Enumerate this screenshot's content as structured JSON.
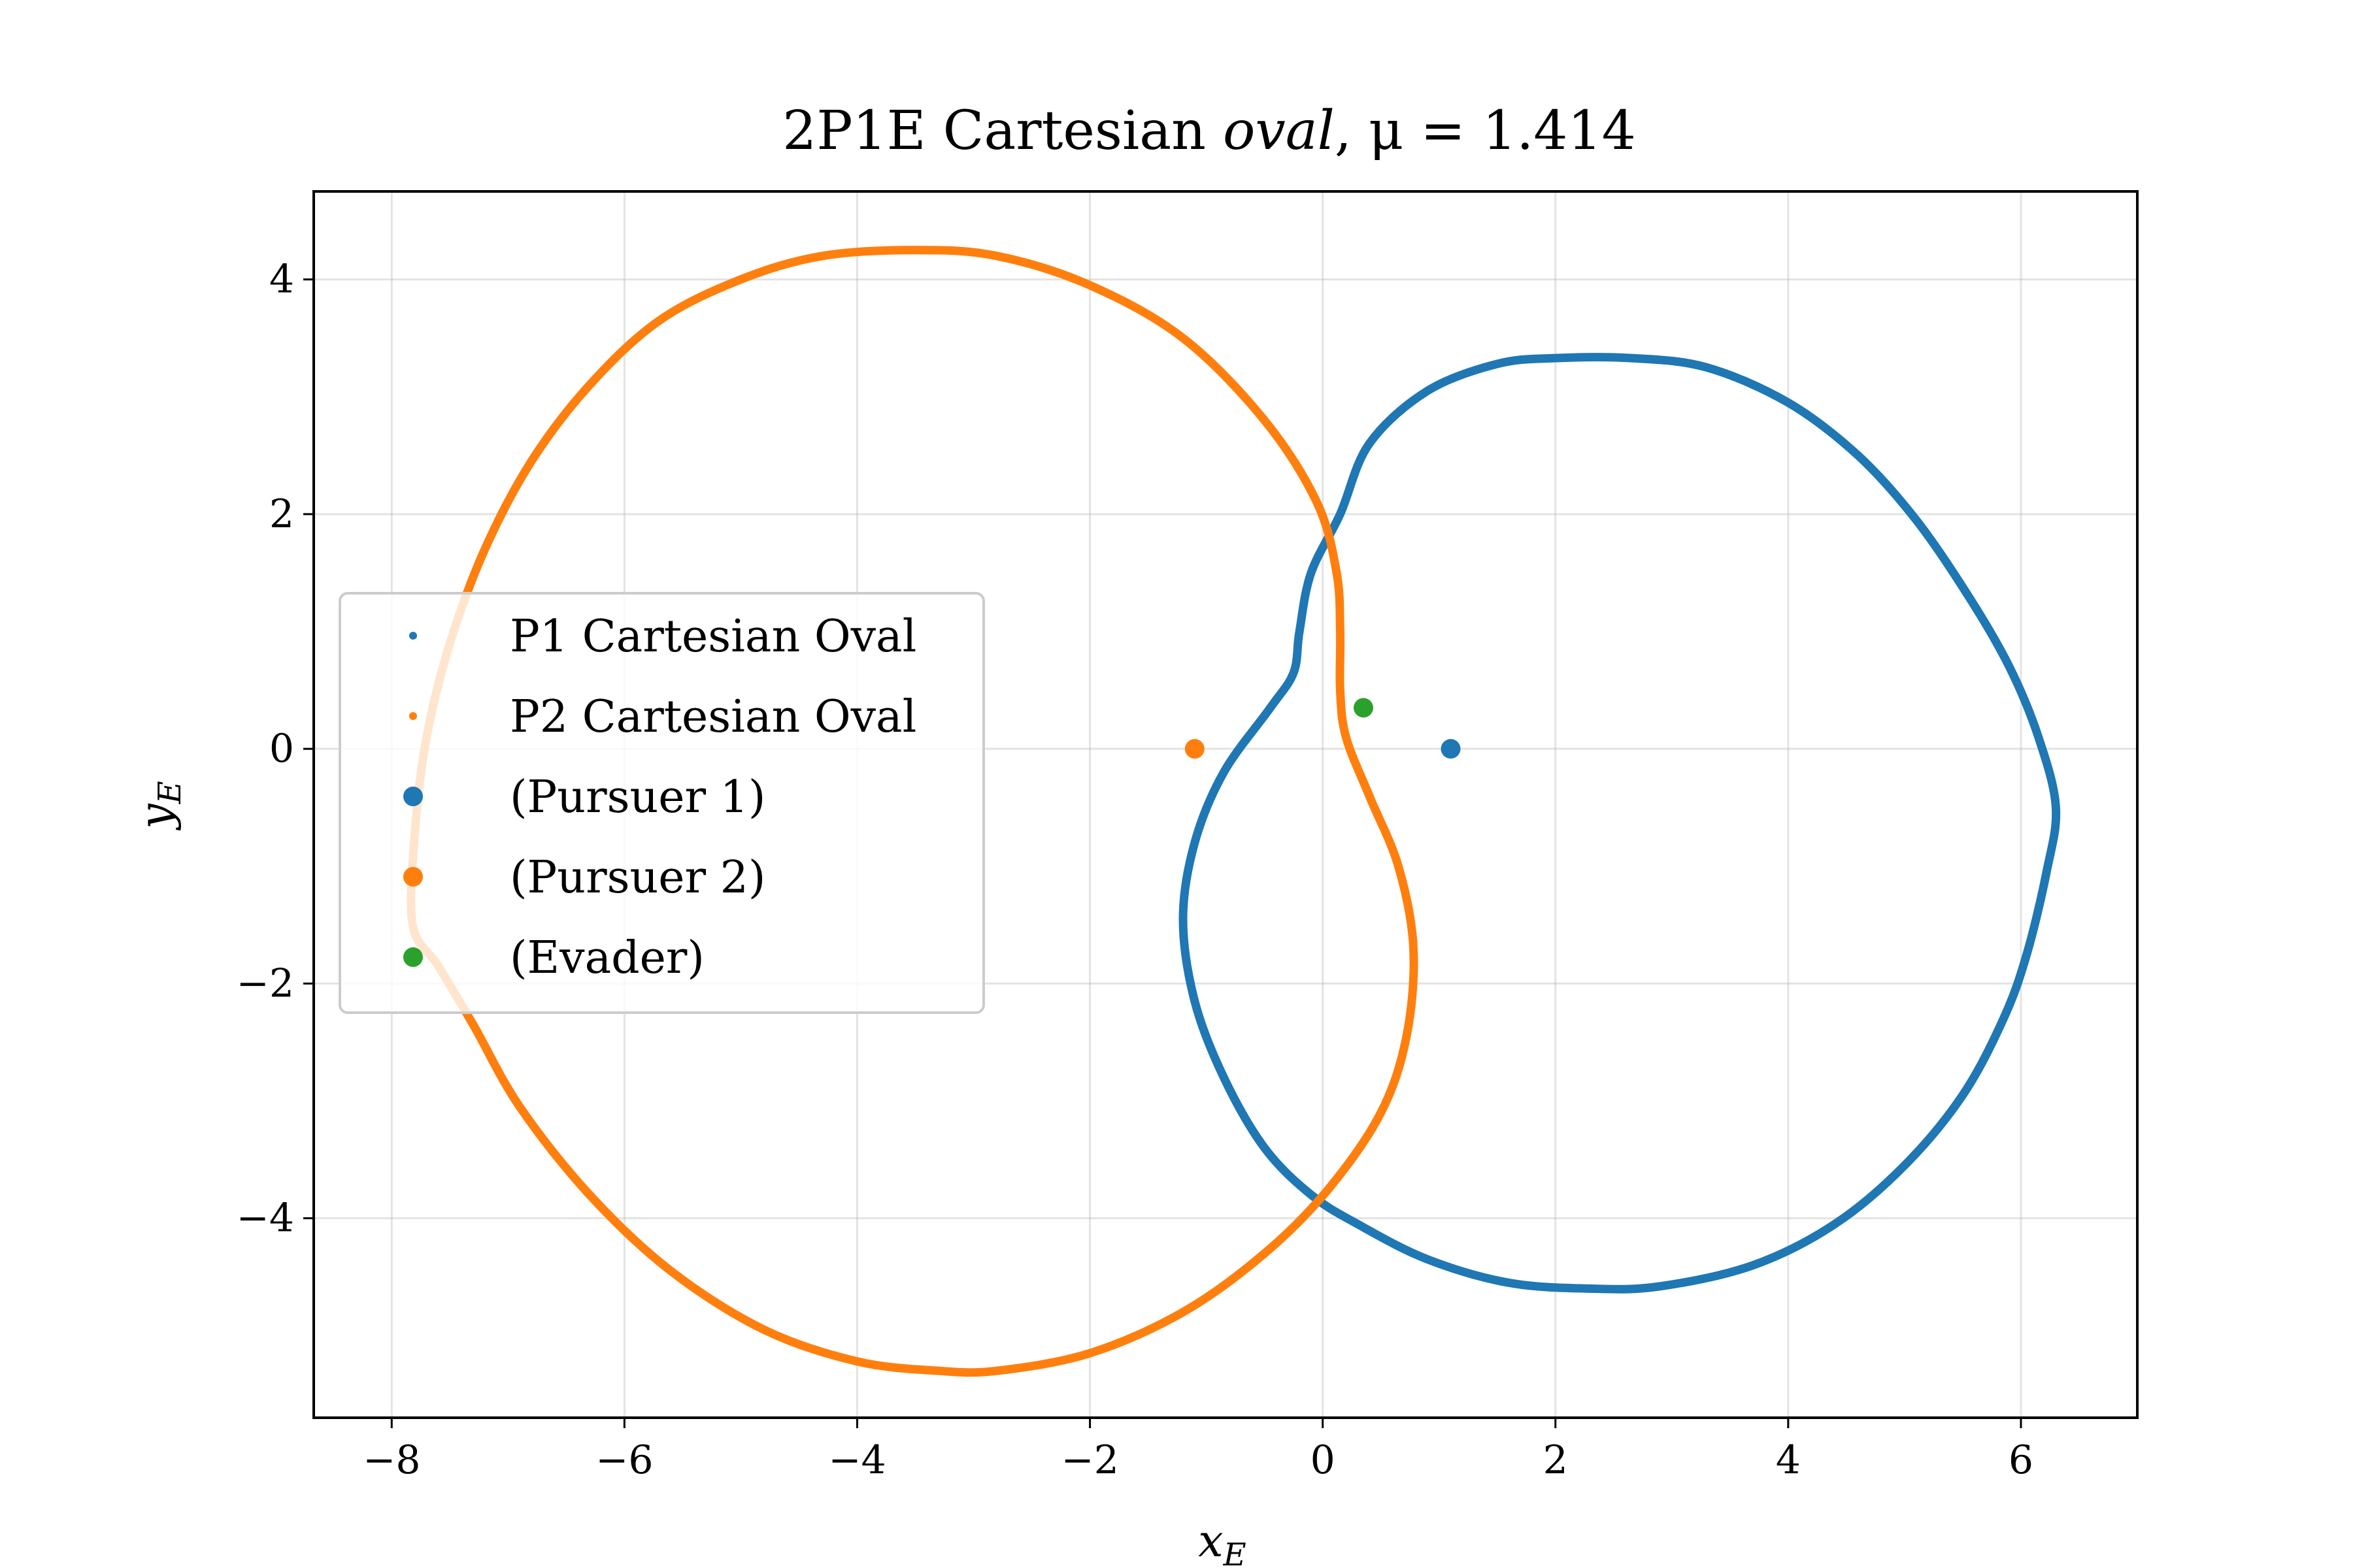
{
  "chart_data": {
    "type": "scatter",
    "title": {
      "prefix": "2P1E Cartesian ",
      "italic": "oval",
      "suffix": ", μ = 1.414"
    },
    "xlabel": {
      "main": "x",
      "sub": "E"
    },
    "ylabel": {
      "main": "y",
      "sub": "E"
    },
    "xlim": [
      -8.67,
      7.0
    ],
    "ylim": [
      -5.7,
      4.75
    ],
    "xticks": [
      -8,
      -6,
      -4,
      -2,
      0,
      2,
      4,
      6
    ],
    "yticks": [
      -4,
      -2,
      0,
      2,
      4
    ],
    "xtick_labels": [
      "−8",
      "−6",
      "−4",
      "−2",
      "0",
      "2",
      "4",
      "6"
    ],
    "ytick_labels": [
      "−4",
      "−2",
      "0",
      "2",
      "4"
    ],
    "grid": true,
    "legend_position": "center-left",
    "colors": {
      "p1": "#1f77b4",
      "p2": "#ff7f0e",
      "evader": "#2ca02c"
    },
    "series": [
      {
        "name": "P1 Cartesian Oval",
        "kind": "curve",
        "color": "#1f77b4",
        "points": [
          [
            0.15,
            2.0
          ],
          [
            0.4,
            2.6
          ],
          [
            0.9,
            3.05
          ],
          [
            1.5,
            3.28
          ],
          [
            2.0,
            3.33
          ],
          [
            2.65,
            3.33
          ],
          [
            3.3,
            3.25
          ],
          [
            4.0,
            2.95
          ],
          [
            4.6,
            2.5
          ],
          [
            5.1,
            1.95
          ],
          [
            5.55,
            1.3
          ],
          [
            5.9,
            0.7
          ],
          [
            6.15,
            0.1
          ],
          [
            6.3,
            -0.5
          ],
          [
            6.22,
            -1.05
          ],
          [
            6.05,
            -1.75
          ],
          [
            5.85,
            -2.3
          ],
          [
            5.5,
            -2.95
          ],
          [
            5.0,
            -3.55
          ],
          [
            4.4,
            -4.05
          ],
          [
            3.7,
            -4.4
          ],
          [
            2.9,
            -4.58
          ],
          [
            2.3,
            -4.6
          ],
          [
            1.6,
            -4.55
          ],
          [
            0.9,
            -4.35
          ],
          [
            0.3,
            -4.05
          ],
          [
            -0.1,
            -3.8
          ],
          [
            -0.5,
            -3.4
          ],
          [
            -0.85,
            -2.8
          ],
          [
            -1.1,
            -2.15
          ],
          [
            -1.2,
            -1.45
          ],
          [
            -1.1,
            -0.8
          ],
          [
            -0.85,
            -0.2
          ],
          [
            -0.45,
            0.35
          ],
          [
            -0.25,
            0.65
          ],
          [
            -0.2,
            1.0
          ],
          [
            -0.1,
            1.5
          ],
          [
            0.15,
            2.0
          ]
        ]
      },
      {
        "name": "P2 Cartesian Oval",
        "kind": "curve",
        "color": "#ff7f0e",
        "points": [
          [
            -7.82,
            -1.5
          ],
          [
            -7.8,
            -0.7
          ],
          [
            -7.7,
            0.1
          ],
          [
            -7.5,
            0.9
          ],
          [
            -7.2,
            1.7
          ],
          [
            -6.8,
            2.45
          ],
          [
            -6.3,
            3.1
          ],
          [
            -5.7,
            3.65
          ],
          [
            -5.0,
            4.0
          ],
          [
            -4.3,
            4.2
          ],
          [
            -3.5,
            4.25
          ],
          [
            -2.8,
            4.2
          ],
          [
            -2.0,
            3.95
          ],
          [
            -1.2,
            3.5
          ],
          [
            -0.5,
            2.8
          ],
          [
            -0.05,
            2.1
          ],
          [
            0.12,
            1.5
          ],
          [
            0.15,
            1.0
          ],
          [
            0.15,
            0.5
          ],
          [
            0.2,
            0.1
          ],
          [
            0.4,
            -0.4
          ],
          [
            0.65,
            -1.0
          ],
          [
            0.78,
            -1.7
          ],
          [
            0.72,
            -2.45
          ],
          [
            0.5,
            -3.1
          ],
          [
            0.05,
            -3.75
          ],
          [
            -0.5,
            -4.3
          ],
          [
            -1.2,
            -4.8
          ],
          [
            -2.0,
            -5.15
          ],
          [
            -2.8,
            -5.3
          ],
          [
            -3.3,
            -5.3
          ],
          [
            -4.0,
            -5.22
          ],
          [
            -4.8,
            -4.95
          ],
          [
            -5.6,
            -4.45
          ],
          [
            -6.3,
            -3.8
          ],
          [
            -6.9,
            -3.05
          ],
          [
            -7.3,
            -2.35
          ],
          [
            -7.6,
            -1.85
          ]
        ]
      },
      {
        "name": "(Pursuer 1)",
        "kind": "point",
        "color": "#1f77b4",
        "x": 1.1,
        "y": 0.0
      },
      {
        "name": "(Pursuer 2)",
        "kind": "point",
        "color": "#ff7f0e",
        "x": -1.1,
        "y": 0.0
      },
      {
        "name": "(Evader)",
        "kind": "point",
        "color": "#2ca02c",
        "x": 0.35,
        "y": 0.35
      }
    ]
  }
}
